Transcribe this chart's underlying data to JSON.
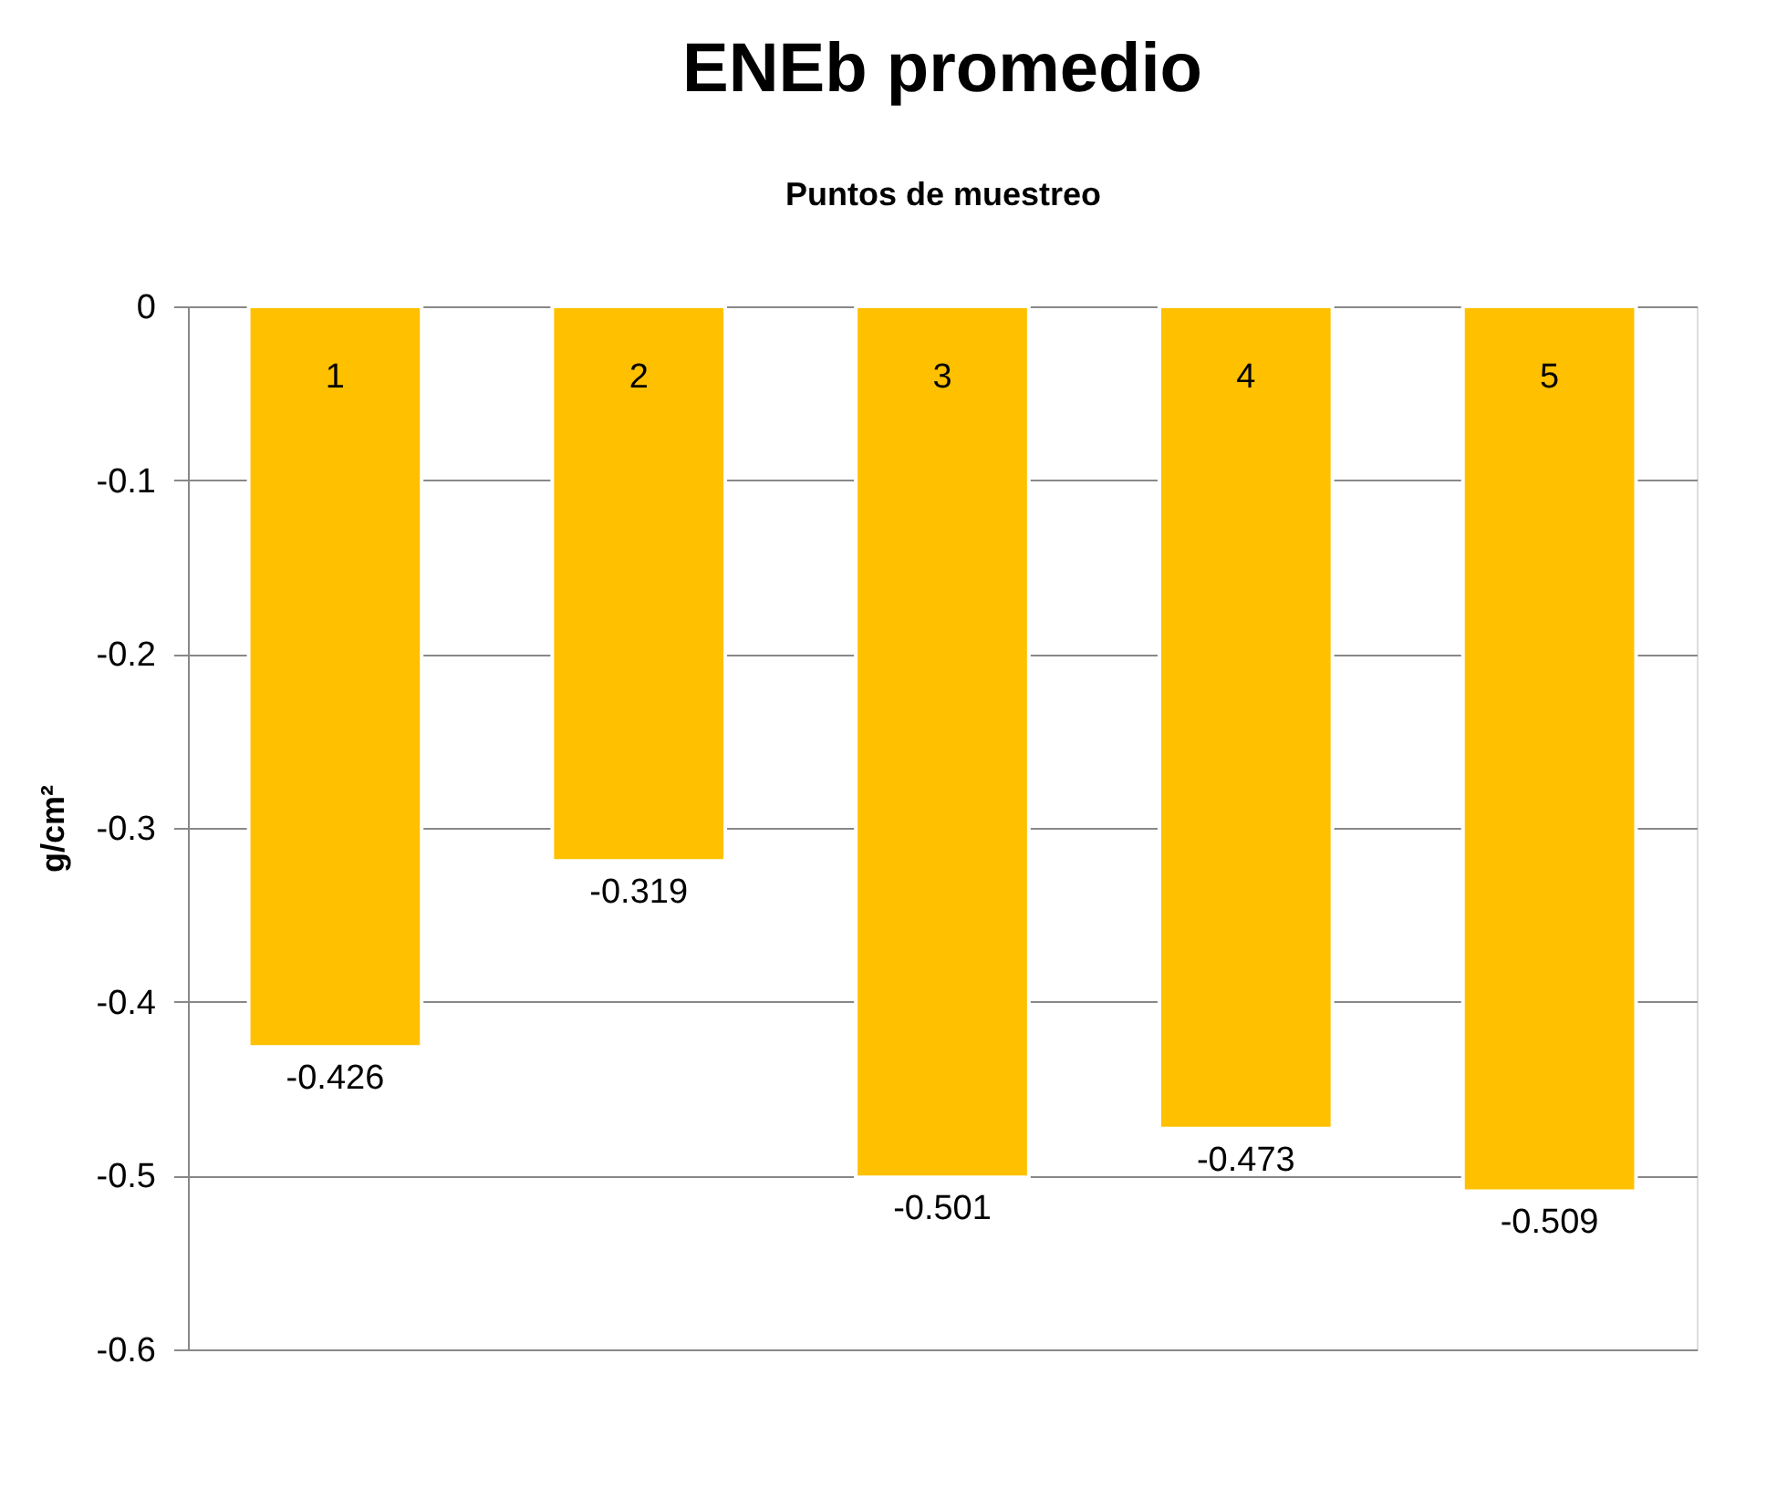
{
  "chart_data": {
    "type": "bar",
    "title": "ENEb promedio",
    "xlabel": "Puntos de muestreo",
    "ylabel": "g/cm²",
    "categories": [
      "1",
      "2",
      "3",
      "4",
      "5"
    ],
    "values": [
      -0.426,
      -0.319,
      -0.501,
      -0.473,
      -0.509
    ],
    "color": "#ffc000",
    "ylim": [
      -0.6,
      0
    ],
    "yticks": [
      0,
      -0.1,
      -0.2,
      -0.3,
      -0.4,
      -0.5,
      -0.6
    ],
    "grid": "y",
    "data_labels": true
  }
}
